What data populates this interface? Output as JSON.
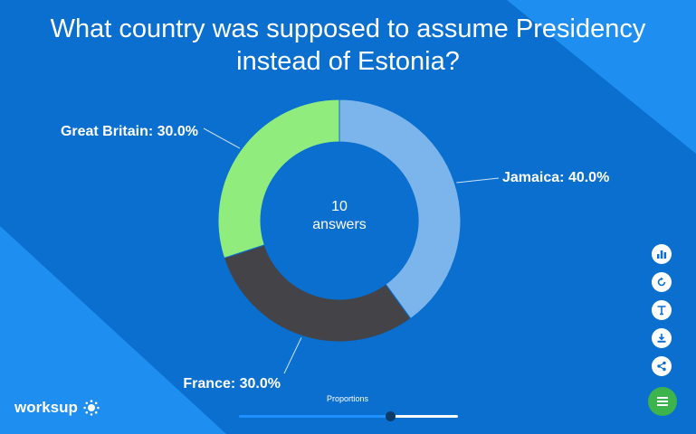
{
  "title": "What country was supposed to assume Presidency instead of Estonia?",
  "colors": {
    "background": "#0a6fcf",
    "accent_light": "#1e90ff",
    "menu_button": "#3cb34b"
  },
  "chart_data": {
    "type": "pie",
    "donut": true,
    "title": "What country was supposed to assume Presidency instead of Estonia?",
    "center_label": {
      "count": "10",
      "unit": "answers"
    },
    "slices": [
      {
        "name": "Jamaica",
        "value": 40.0,
        "label": "Jamaica: 40.0%",
        "color": "#7cb5ec"
      },
      {
        "name": "France",
        "value": 30.0,
        "label": "France: 30.0%",
        "color": "#434348"
      },
      {
        "name": "Great Britain",
        "value": 30.0,
        "label": "Great Britain: 30.0%",
        "color": "#90ed7d"
      }
    ]
  },
  "toolbar": {
    "tools": [
      {
        "icon": "bar-chart-icon"
      },
      {
        "icon": "refresh-icon"
      },
      {
        "icon": "text-icon"
      },
      {
        "icon": "download-icon"
      },
      {
        "icon": "share-icon"
      }
    ],
    "menu_icon": "menu-icon"
  },
  "brand": {
    "name": "worksup",
    "icon": "sun-dots-icon"
  },
  "slider": {
    "label": "Proportions",
    "value": 0.69
  }
}
